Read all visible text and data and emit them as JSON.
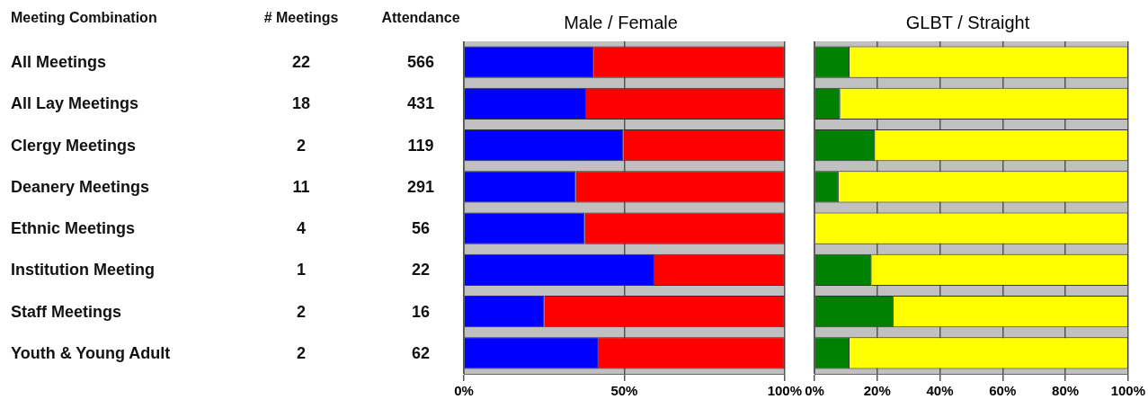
{
  "chart_data": [
    {
      "type": "other",
      "annotations": [
        "Meeting Combination"
      ],
      "categories": [
        "All Meetings",
        "All Lay Meetings",
        "Clergy Meetings",
        "Deanery Meetings",
        "Ethnic Meetings",
        "Institution Meeting",
        "Staff Meetings",
        "Youth & Young Adult"
      ],
      "series": [
        {
          "name": "# Meetings",
          "values": [
            22,
            18,
            2,
            11,
            4,
            1,
            2,
            2
          ]
        },
        {
          "name": "Attendance",
          "values": [
            566,
            431,
            119,
            291,
            56,
            22,
            16,
            62
          ]
        }
      ],
      "data_labels": true
    },
    {
      "type": "bar",
      "orientation": "horizontal",
      "stacked": true,
      "title": "Male / Female",
      "categories": [
        null,
        null,
        null,
        null,
        null,
        null,
        null,
        null
      ],
      "series": [
        {
          "color": "#0000ff",
          "values": [
            40.4,
            38.1,
            49.7,
            34.9,
            37.7,
            59.4,
            25.1,
            42.0
          ]
        },
        {
          "color": "#ff0000",
          "values": [
            59.6,
            61.9,
            50.3,
            65.1,
            62.3,
            40.6,
            74.9,
            58.0
          ]
        }
      ],
      "xlim": [
        0,
        100
      ],
      "xticks": [
        {
          "value": 0,
          "label": "0%"
        },
        {
          "value": 50,
          "label": "50%"
        },
        {
          "value": 100,
          "label": "100%"
        }
      ],
      "grid": "x",
      "legend": false,
      "tick_labels": "x"
    },
    {
      "type": "bar",
      "orientation": "horizontal",
      "stacked": true,
      "title": "GLBT / Straight",
      "categories": [
        null,
        null,
        null,
        null,
        null,
        null,
        null,
        null
      ],
      "series": [
        {
          "color": "#008000",
          "values": [
            11.2,
            8.2,
            19.3,
            7.7,
            0,
            18.2,
            25.2,
            11.2
          ]
        },
        {
          "color": "#ffff00",
          "values": [
            88.8,
            91.8,
            80.7,
            92.3,
            100,
            81.8,
            74.8,
            88.8
          ]
        }
      ],
      "xlim": [
        0,
        100
      ],
      "xticks": [
        {
          "value": 0,
          "label": "0%"
        },
        {
          "value": 20,
          "label": "20%"
        },
        {
          "value": 40,
          "label": "40%"
        },
        {
          "value": 60,
          "label": "60%"
        },
        {
          "value": 80,
          "label": "80%"
        },
        {
          "value": 100,
          "label": "100%"
        }
      ],
      "grid": "x",
      "legend": false,
      "tick_labels": "x"
    }
  ]
}
